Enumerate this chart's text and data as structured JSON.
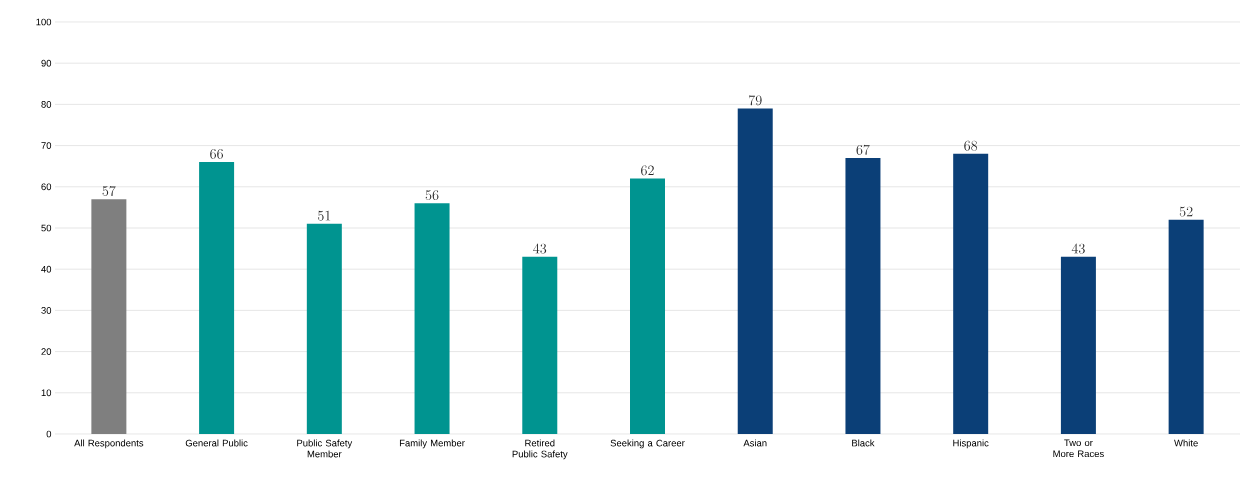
{
  "chart_data": {
    "type": "bar",
    "categories": [
      "All Respondents",
      "General Public",
      "Public Safety Member",
      "Family Member",
      "Retired Public Safety",
      "Seeking a Career",
      "Asian",
      "Black",
      "Hispanic",
      "Two or More Races",
      "White"
    ],
    "values": [
      57,
      66,
      51,
      56,
      43,
      62,
      79,
      67,
      68,
      43,
      52
    ],
    "colors": [
      "#7f7f7f",
      "#009490",
      "#009490",
      "#009490",
      "#009490",
      "#009490",
      "#0b3f77",
      "#0b3f77",
      "#0b3f77",
      "#0b3f77",
      "#0b3f77"
    ],
    "ylim": [
      0,
      100
    ],
    "yticks": [
      0,
      10,
      20,
      30,
      40,
      50,
      60,
      70,
      80,
      90,
      100
    ],
    "grid": "y",
    "data_labels": true
  }
}
